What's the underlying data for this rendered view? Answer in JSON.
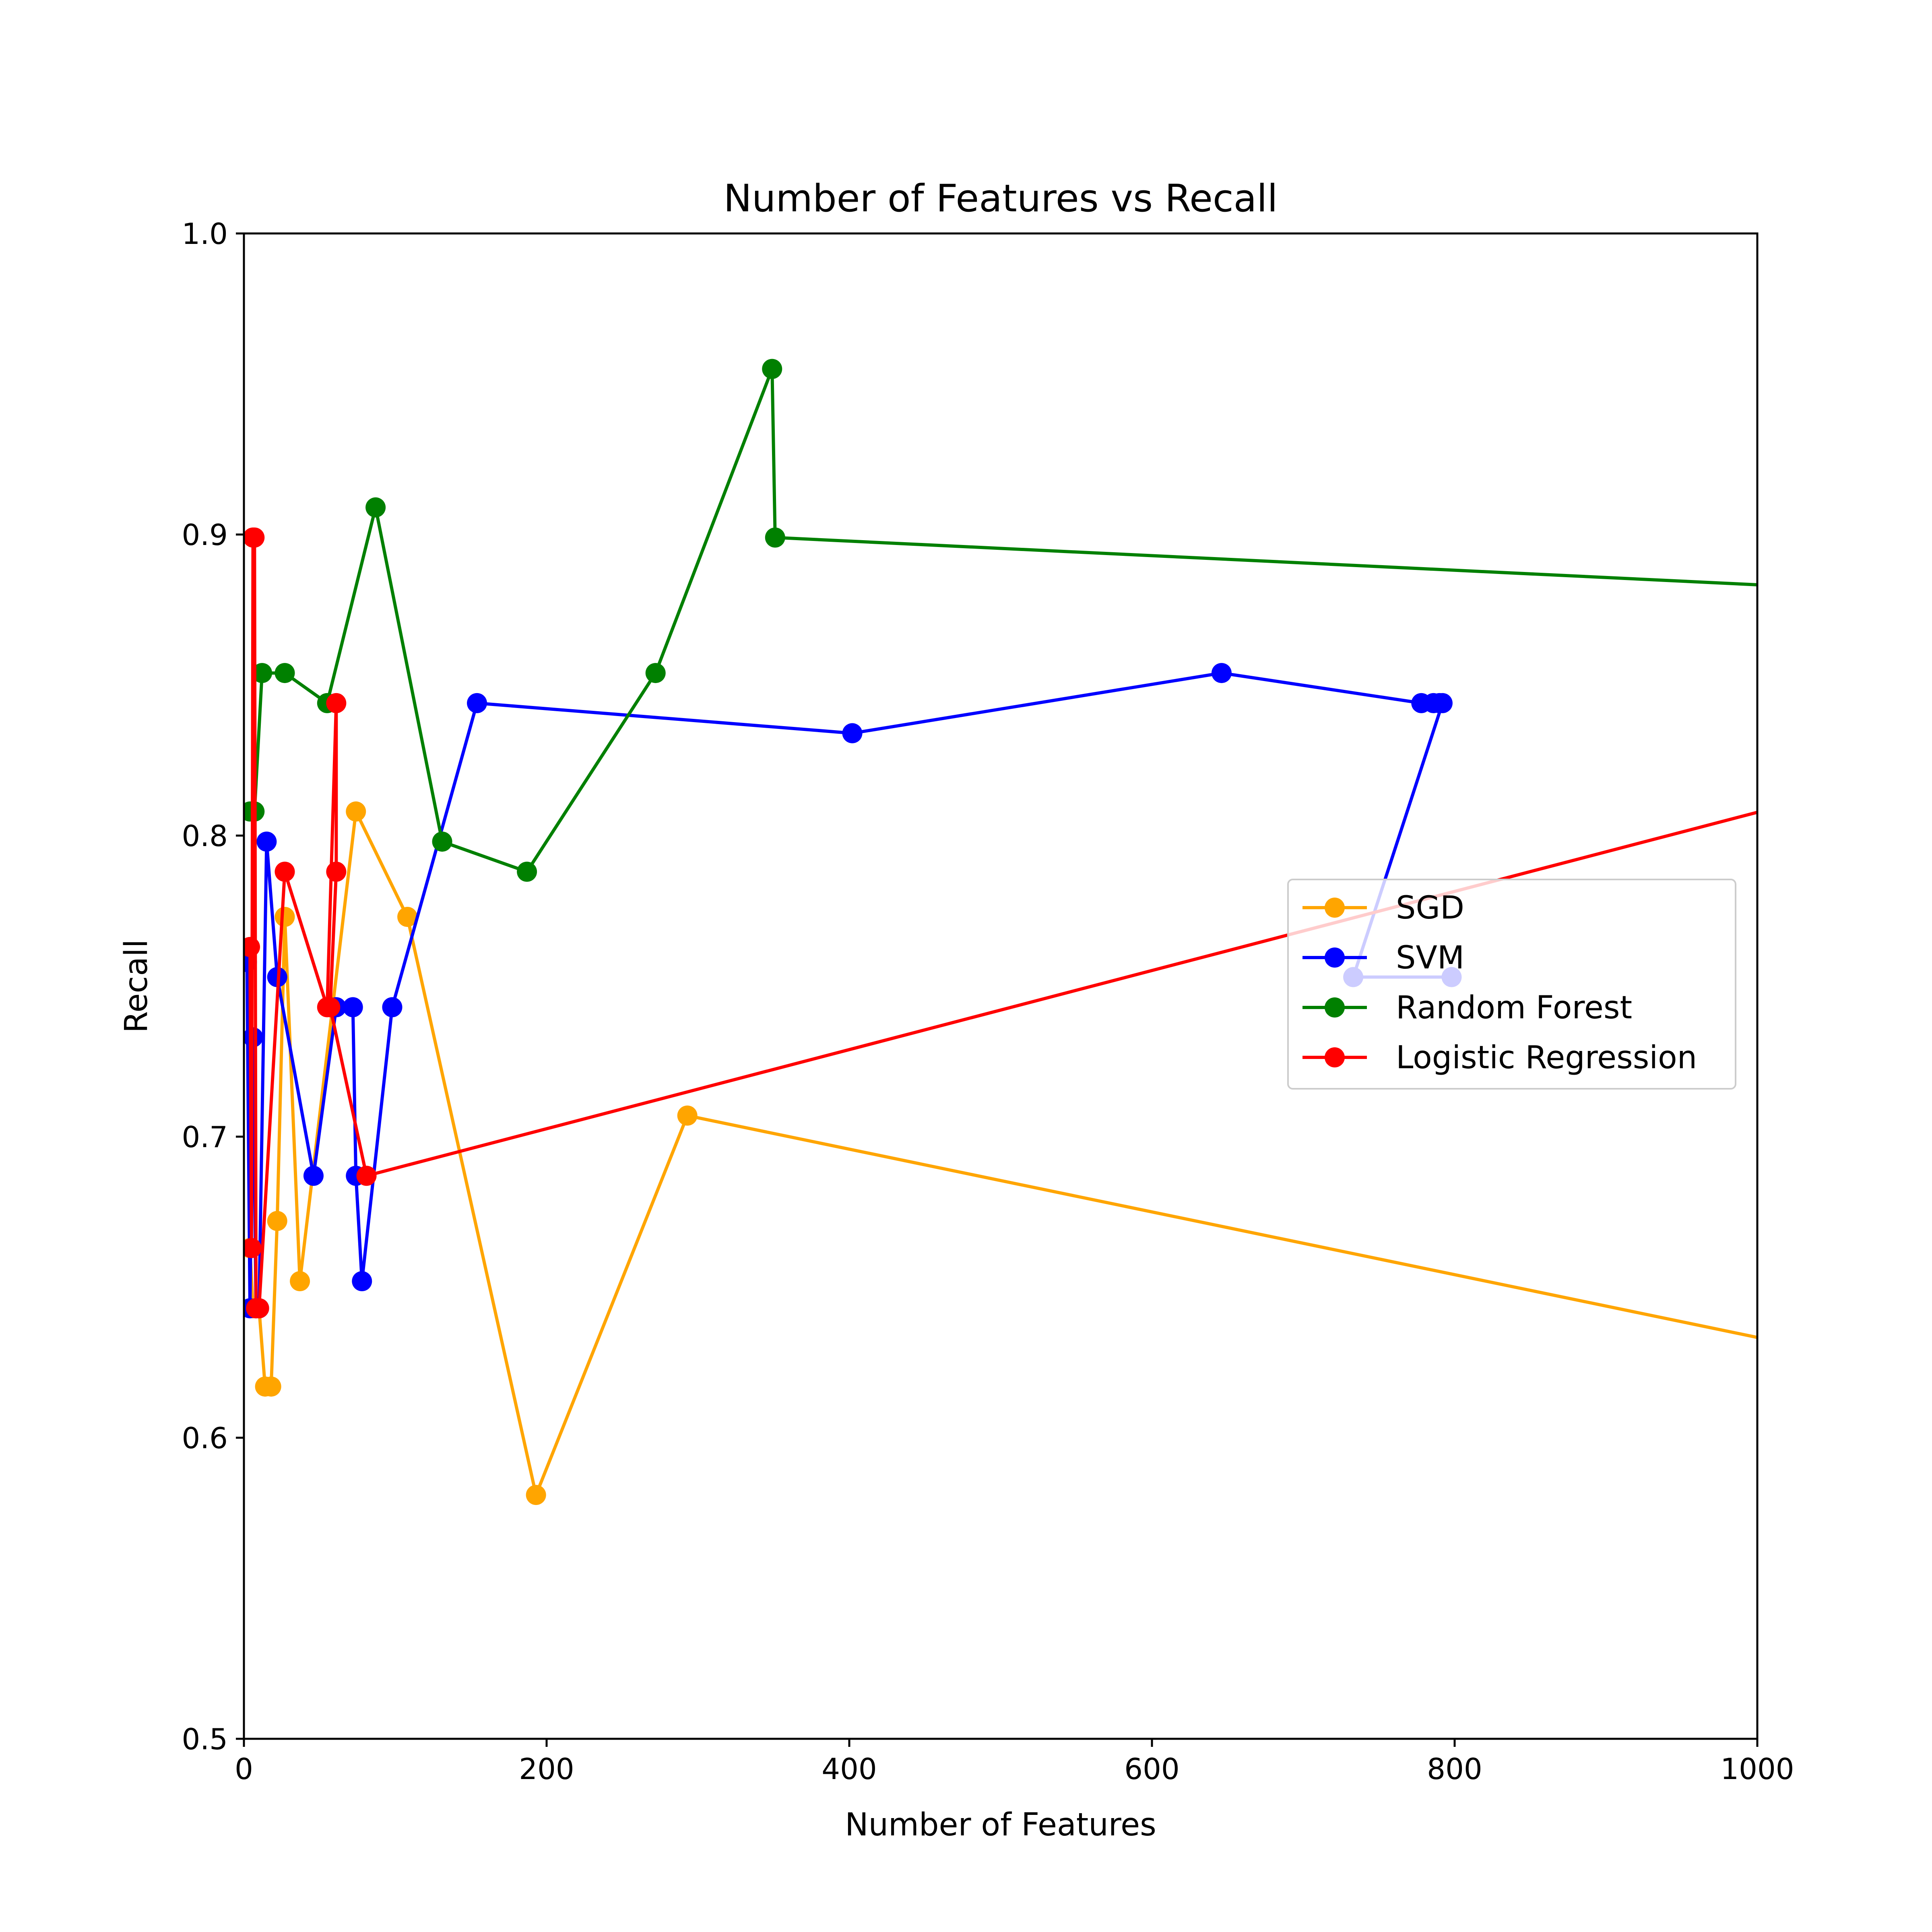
{
  "chart_data": {
    "type": "line",
    "title": "Number of Features vs Recall",
    "xlabel": "Number of Features",
    "ylabel": "Recall",
    "xlim": [
      0,
      1000
    ],
    "ylim": [
      0.5,
      1.0
    ],
    "xticks": [
      0,
      200,
      400,
      600,
      800,
      1000
    ],
    "xtick_labels": [
      "0",
      "200",
      "400",
      "600",
      "800",
      "1000"
    ],
    "yticks": [
      0.5,
      0.6,
      0.7,
      0.8,
      0.9,
      1.0
    ],
    "ytick_labels": [
      "0.5",
      "0.6",
      "0.7",
      "0.8",
      "0.9",
      "1.0"
    ],
    "grid": false,
    "legend_position": "right",
    "series": [
      {
        "name": "SGD",
        "color": "#ffa500",
        "x": [
          4,
          6,
          8,
          10,
          14,
          18,
          22,
          27,
          37,
          74,
          108,
          193,
          293,
          1550
        ],
        "y": [
          0.663,
          0.643,
          0.643,
          0.643,
          0.617,
          0.617,
          0.672,
          0.773,
          0.652,
          0.808,
          0.773,
          0.581,
          0.707,
          0.576
        ]
      },
      {
        "name": "SVM",
        "color": "#0000ff",
        "x": [
          2,
          4,
          6,
          8,
          10,
          15,
          22,
          46,
          61,
          72,
          74,
          78,
          98,
          154,
          402,
          646,
          778,
          786,
          790,
          792,
          733,
          798
        ],
        "y": [
          0.758,
          0.643,
          0.733,
          0.643,
          0.643,
          0.798,
          0.753,
          0.687,
          0.743,
          0.743,
          0.687,
          0.652,
          0.743,
          0.844,
          0.834,
          0.854,
          0.844,
          0.844,
          0.844,
          0.844,
          0.753,
          0.753
        ]
      },
      {
        "name": "Random Forest",
        "color": "#008000",
        "x": [
          4,
          7,
          12,
          27,
          55,
          87,
          131,
          187,
          272,
          349,
          351,
          1550
        ],
        "y": [
          0.808,
          0.808,
          0.854,
          0.854,
          0.844,
          0.909,
          0.798,
          0.788,
          0.854,
          0.955,
          0.899,
          0.87
        ]
      },
      {
        "name": "Logistic Regression",
        "color": "#ff0000",
        "x": [
          4,
          5,
          6,
          7,
          8,
          10,
          27,
          55,
          61,
          61,
          57,
          81,
          1550
        ],
        "y": [
          0.763,
          0.663,
          0.899,
          0.899,
          0.643,
          0.643,
          0.788,
          0.743,
          0.844,
          0.788,
          0.743,
          0.687,
          0.88
        ]
      }
    ]
  }
}
